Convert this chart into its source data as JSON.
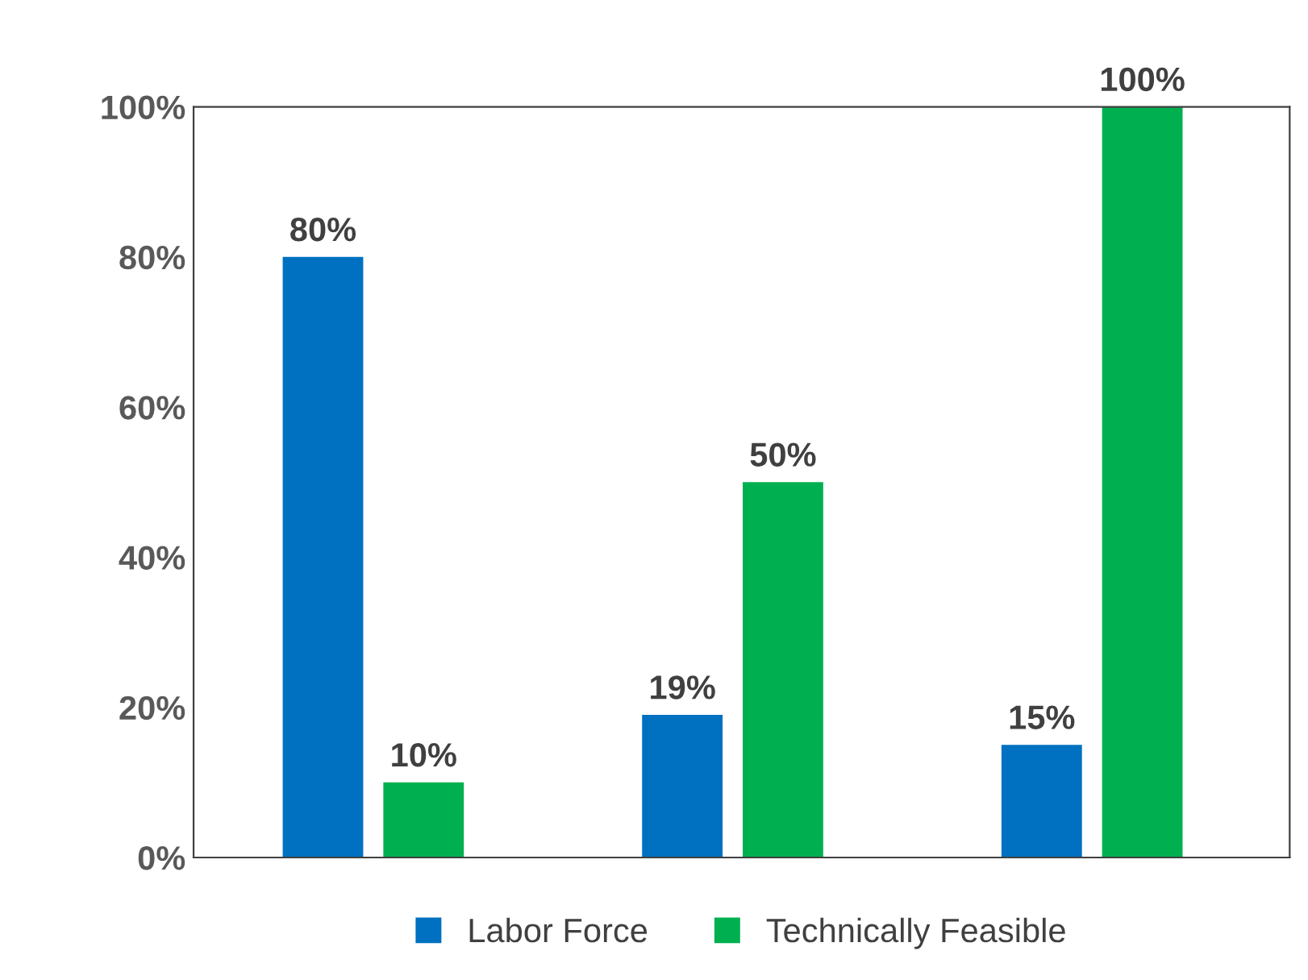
{
  "chart_data": {
    "type": "bar",
    "categories": [
      null,
      null,
      null
    ],
    "series": [
      {
        "name": "Labor Force",
        "color": "#0070c0",
        "values": [
          80,
          19,
          15
        ],
        "value_labels": [
          "80%",
          "19%",
          "15%"
        ]
      },
      {
        "name": "Technically Feasible",
        "color": "#00b050",
        "values": [
          10,
          50,
          100
        ],
        "value_labels": [
          "10%",
          "50%",
          "100%"
        ]
      }
    ],
    "ylim": [
      0,
      100
    ],
    "yticks": [
      {
        "value": 0,
        "label": "0%"
      },
      {
        "value": 20,
        "label": "20%"
      },
      {
        "value": 40,
        "label": "40%"
      },
      {
        "value": 60,
        "label": "60%"
      },
      {
        "value": 80,
        "label": "80%"
      },
      {
        "value": 100,
        "label": "100%"
      }
    ],
    "grid": false,
    "legend": "bottom"
  }
}
